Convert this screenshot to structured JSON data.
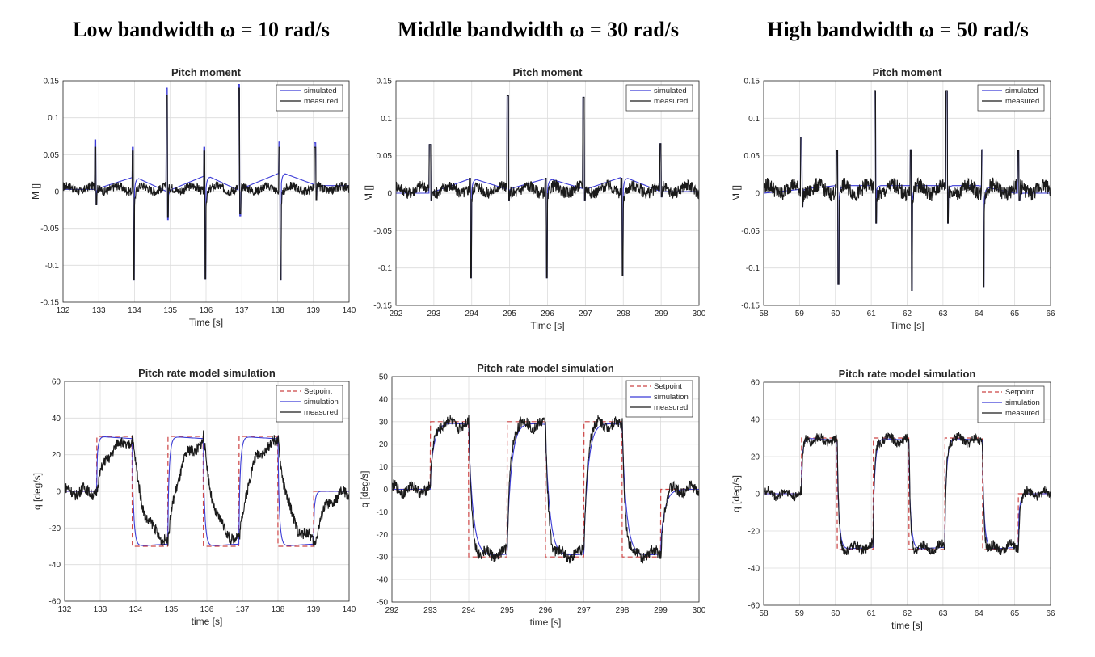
{
  "column_titles": [
    "Low bandwidth ω = 10 rad/s",
    "Middle bandwidth ω = 30 rad/s",
    "High bandwidth ω = 50 rad/s"
  ],
  "colors": {
    "simulated": "#3b3bd6",
    "measured": "#1a1a1a",
    "setpoint": "#cc4444",
    "grid": "#dcdcdc"
  },
  "chart_data": [
    {
      "type": "line",
      "title": "Pitch moment",
      "xlabel": "Time [s]",
      "ylabel": "M []",
      "xlim": [
        132,
        140
      ],
      "ylim": [
        -0.15,
        0.15
      ],
      "xticks": [
        132,
        133,
        134,
        135,
        136,
        137,
        138,
        139,
        140
      ],
      "yticks": [
        -0.15,
        -0.1,
        -0.05,
        0,
        0.05,
        0.1,
        0.15
      ],
      "grid": true,
      "legend": "top-right",
      "series": [
        {
          "name": "simulated",
          "kind": "moment_sim",
          "steps": [
            [
              132,
              0.003
            ],
            [
              132.9,
              0.003
            ],
            [
              134,
              0.02
            ],
            [
              134.9,
              0.0
            ],
            [
              136,
              0.022
            ],
            [
              136.9,
              0.002
            ],
            [
              138.1,
              0.026
            ],
            [
              139.1,
              0.008
            ],
            [
              140,
              0.008
            ]
          ],
          "spikes": [
            [
              132.9,
              0.07,
              -0.018
            ],
            [
              133.95,
              0.06,
              -0.12
            ],
            [
              134.9,
              0.14,
              -0.038
            ],
            [
              135.95,
              0.06,
              -0.118
            ],
            [
              136.92,
              0.145,
              -0.033
            ],
            [
              138.05,
              0.067,
              -0.12
            ],
            [
              139.05,
              0.066,
              -0.012
            ]
          ]
        },
        {
          "name": "measured",
          "kind": "moment_meas",
          "base": 0.004,
          "noise": 0.006,
          "spikes": [
            [
              132.9,
              0.06,
              -0.018
            ],
            [
              133.95,
              0.055,
              -0.12
            ],
            [
              134.9,
              0.13,
              -0.035
            ],
            [
              135.95,
              0.055,
              -0.118
            ],
            [
              136.92,
              0.14,
              -0.03
            ],
            [
              138.05,
              0.06,
              -0.12
            ],
            [
              139.05,
              0.06,
              -0.012
            ]
          ]
        }
      ]
    },
    {
      "type": "line",
      "title": "Pitch moment",
      "xlabel": "Time [s]",
      "ylabel": "M []",
      "xlim": [
        292,
        300
      ],
      "ylim": [
        -0.15,
        0.15
      ],
      "xticks": [
        292,
        293,
        294,
        295,
        296,
        297,
        298,
        299,
        300
      ],
      "yticks": [
        -0.15,
        -0.1,
        -0.05,
        0,
        0.05,
        0.1,
        0.15
      ],
      "grid": true,
      "legend": "top-right",
      "series": [
        {
          "name": "simulated",
          "kind": "moment_sim",
          "steps": [
            [
              292,
              0.0
            ],
            [
              292.9,
              0.0
            ],
            [
              294,
              0.02
            ],
            [
              294.95,
              0.005
            ],
            [
              296,
              0.02
            ],
            [
              297,
              0.005
            ],
            [
              298,
              0.022
            ],
            [
              299,
              0.002
            ],
            [
              300,
              0.002
            ]
          ],
          "spikes": [
            [
              292.9,
              0.065,
              -0.01
            ],
            [
              293.95,
              0.02,
              -0.113
            ],
            [
              294.95,
              0.13,
              -0.01
            ],
            [
              295.95,
              0.02,
              -0.113
            ],
            [
              296.95,
              0.128,
              -0.01
            ],
            [
              297.95,
              0.02,
              -0.11
            ],
            [
              298.98,
              0.066,
              -0.005
            ]
          ]
        },
        {
          "name": "measured",
          "kind": "moment_meas",
          "base": 0.005,
          "noise": 0.008,
          "spikes": [
            [
              292.9,
              0.065,
              -0.01
            ],
            [
              293.95,
              0.02,
              -0.113
            ],
            [
              294.95,
              0.13,
              -0.01
            ],
            [
              295.95,
              0.02,
              -0.113
            ],
            [
              296.95,
              0.128,
              -0.01
            ],
            [
              297.95,
              0.02,
              -0.11
            ],
            [
              298.98,
              0.066,
              -0.005
            ]
          ]
        }
      ]
    },
    {
      "type": "line",
      "title": "Pitch moment",
      "xlabel": "Time [s]",
      "ylabel": "M []",
      "xlim": [
        58,
        66
      ],
      "ylim": [
        -0.15,
        0.15
      ],
      "xticks": [
        58,
        59,
        60,
        61,
        62,
        63,
        64,
        65,
        66
      ],
      "yticks": [
        -0.15,
        -0.1,
        -0.05,
        0,
        0.05,
        0.1,
        0.15
      ],
      "grid": true,
      "legend": "top-right",
      "series": [
        {
          "name": "simulated",
          "kind": "moment_sim",
          "steps": [
            [
              58,
              0.0
            ],
            [
              59,
              0.005
            ],
            [
              60,
              0.01
            ],
            [
              61,
              0.01
            ],
            [
              62,
              0.01
            ],
            [
              63,
              0.01
            ],
            [
              64,
              0.01
            ],
            [
              65,
              0.0
            ],
            [
              66,
              0.0
            ]
          ],
          "spikes": [
            [
              59.05,
              0.075,
              -0.018
            ],
            [
              60.05,
              0.057,
              -0.122
            ],
            [
              61.1,
              0.137,
              -0.04
            ],
            [
              62.1,
              0.058,
              -0.13
            ],
            [
              63.1,
              0.137,
              -0.04
            ],
            [
              64.1,
              0.058,
              -0.125
            ],
            [
              65.1,
              0.057,
              -0.01
            ]
          ]
        },
        {
          "name": "measured",
          "kind": "moment_meas",
          "base": 0.005,
          "noise": 0.01,
          "spikes": [
            [
              59.05,
              0.075,
              -0.018
            ],
            [
              60.05,
              0.057,
              -0.122
            ],
            [
              61.1,
              0.137,
              -0.04
            ],
            [
              62.1,
              0.058,
              -0.13
            ],
            [
              63.1,
              0.137,
              -0.04
            ],
            [
              64.1,
              0.058,
              -0.125
            ],
            [
              65.1,
              0.057,
              -0.01
            ]
          ]
        }
      ]
    },
    {
      "type": "line",
      "title": "Pitch rate model simulation",
      "xlabel": "time [s]",
      "ylabel": "q [deg/s]",
      "xlim": [
        132,
        140
      ],
      "ylim": [
        -60,
        60
      ],
      "xticks": [
        132,
        133,
        134,
        135,
        136,
        137,
        138,
        139,
        140
      ],
      "yticks": [
        -60,
        -40,
        -20,
        0,
        20,
        40,
        60
      ],
      "grid": true,
      "legend": "top-right",
      "series": [
        {
          "name": "Setpoint",
          "kind": "setpoint",
          "segments": [
            [
              132,
              0
            ],
            [
              132.9,
              30
            ],
            [
              133.9,
              -30
            ],
            [
              134.9,
              30
            ],
            [
              135.9,
              -30
            ],
            [
              136.9,
              30
            ],
            [
              138.0,
              -30
            ],
            [
              139.0,
              0
            ],
            [
              140,
              0
            ]
          ]
        },
        {
          "name": "simulation",
          "kind": "sim",
          "overshoot": 26,
          "tau": 0.05,
          "segments": [
            [
              132,
              0
            ],
            [
              132.9,
              30
            ],
            [
              133.9,
              -30
            ],
            [
              134.9,
              30
            ],
            [
              135.9,
              -30
            ],
            [
              136.9,
              30
            ],
            [
              138.0,
              -30
            ],
            [
              139.0,
              0
            ],
            [
              140,
              0
            ]
          ]
        },
        {
          "name": "measured",
          "kind": "meas_lag",
          "tau": 0.3,
          "noise": 3,
          "segments": [
            [
              132,
              0
            ],
            [
              132.9,
              30
            ],
            [
              133.9,
              -30
            ],
            [
              134.9,
              30
            ],
            [
              135.9,
              -30
            ],
            [
              136.9,
              30
            ],
            [
              138.0,
              -30
            ],
            [
              139.0,
              0
            ],
            [
              140,
              0
            ]
          ]
        }
      ]
    },
    {
      "type": "line",
      "title": "Pitch rate model simulation",
      "xlabel": "time [s]",
      "ylabel": "q [deg/s]",
      "xlim": [
        292,
        300
      ],
      "ylim": [
        -50,
        50
      ],
      "xticks": [
        292,
        293,
        294,
        295,
        296,
        297,
        298,
        299,
        300
      ],
      "yticks": [
        -50,
        -40,
        -30,
        -20,
        -10,
        0,
        10,
        20,
        30,
        40,
        50
      ],
      "grid": true,
      "legend": "top-right",
      "series": [
        {
          "name": "Setpoint",
          "kind": "setpoint",
          "segments": [
            [
              292,
              0
            ],
            [
              293,
              30
            ],
            [
              294,
              -30
            ],
            [
              295,
              30
            ],
            [
              296,
              -30
            ],
            [
              297,
              30
            ],
            [
              298,
              -30
            ],
            [
              299,
              0
            ],
            [
              300,
              0
            ]
          ]
        },
        {
          "name": "simulation",
          "kind": "sim",
          "overshoot": 11,
          "tau": 0.12,
          "segments": [
            [
              292,
              0
            ],
            [
              293,
              30
            ],
            [
              294,
              -30
            ],
            [
              295,
              30
            ],
            [
              296,
              -30
            ],
            [
              297,
              30
            ],
            [
              298,
              -30
            ],
            [
              299,
              0
            ],
            [
              300,
              0
            ]
          ]
        },
        {
          "name": "measured",
          "kind": "meas_lag",
          "tau": 0.08,
          "noise": 2.5,
          "segments": [
            [
              292,
              0
            ],
            [
              293,
              30
            ],
            [
              294,
              -30
            ],
            [
              295,
              30
            ],
            [
              296,
              -30
            ],
            [
              297,
              30
            ],
            [
              298,
              -30
            ],
            [
              299,
              0
            ],
            [
              300,
              0
            ]
          ]
        }
      ]
    },
    {
      "type": "line",
      "title": "Pitch rate model simulation",
      "xlabel": "time [s]",
      "ylabel": "q [deg/s]",
      "xlim": [
        58,
        66
      ],
      "ylim": [
        -60,
        60
      ],
      "xticks": [
        58,
        59,
        60,
        61,
        62,
        63,
        64,
        65,
        66
      ],
      "yticks": [
        -60,
        -40,
        -20,
        0,
        20,
        40,
        60
      ],
      "grid": true,
      "legend": "top-right",
      "series": [
        {
          "name": "Setpoint",
          "kind": "setpoint",
          "segments": [
            [
              58,
              0
            ],
            [
              59.05,
              30
            ],
            [
              60.05,
              -30
            ],
            [
              61.05,
              30
            ],
            [
              62.05,
              -30
            ],
            [
              63.05,
              30
            ],
            [
              64.1,
              -30
            ],
            [
              65.1,
              0
            ],
            [
              66,
              0
            ]
          ]
        },
        {
          "name": "simulation",
          "kind": "sim",
          "overshoot": 25,
          "tau": 0.06,
          "segments": [
            [
              58,
              0
            ],
            [
              59.05,
              30
            ],
            [
              60.05,
              -30
            ],
            [
              61.05,
              30
            ],
            [
              62.05,
              -30
            ],
            [
              63.05,
              30
            ],
            [
              64.1,
              -30
            ],
            [
              65.1,
              0
            ],
            [
              66,
              0
            ]
          ]
        },
        {
          "name": "measured",
          "kind": "meas_lag",
          "tau": 0.04,
          "noise": 2.5,
          "segments": [
            [
              58,
              0
            ],
            [
              59.05,
              30
            ],
            [
              60.05,
              -30
            ],
            [
              61.05,
              30
            ],
            [
              62.05,
              -30
            ],
            [
              63.05,
              30
            ],
            [
              64.1,
              -30
            ],
            [
              65.1,
              0
            ],
            [
              66,
              0
            ]
          ]
        }
      ]
    }
  ]
}
